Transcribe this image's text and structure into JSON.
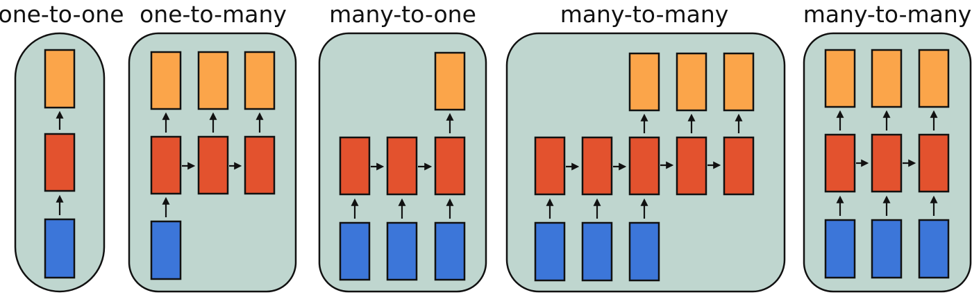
{
  "colors": {
    "panel_bg": "#bfd6cf",
    "input": "#3c76d9",
    "hidden": "#e3522e",
    "output": "#fba54a",
    "outline": "#111111"
  },
  "panels": [
    {
      "title": "one-to-one"
    },
    {
      "title": "one-to-many"
    },
    {
      "title": "many-to-one"
    },
    {
      "title": "many-to-many"
    },
    {
      "title": "many-to-many"
    }
  ]
}
